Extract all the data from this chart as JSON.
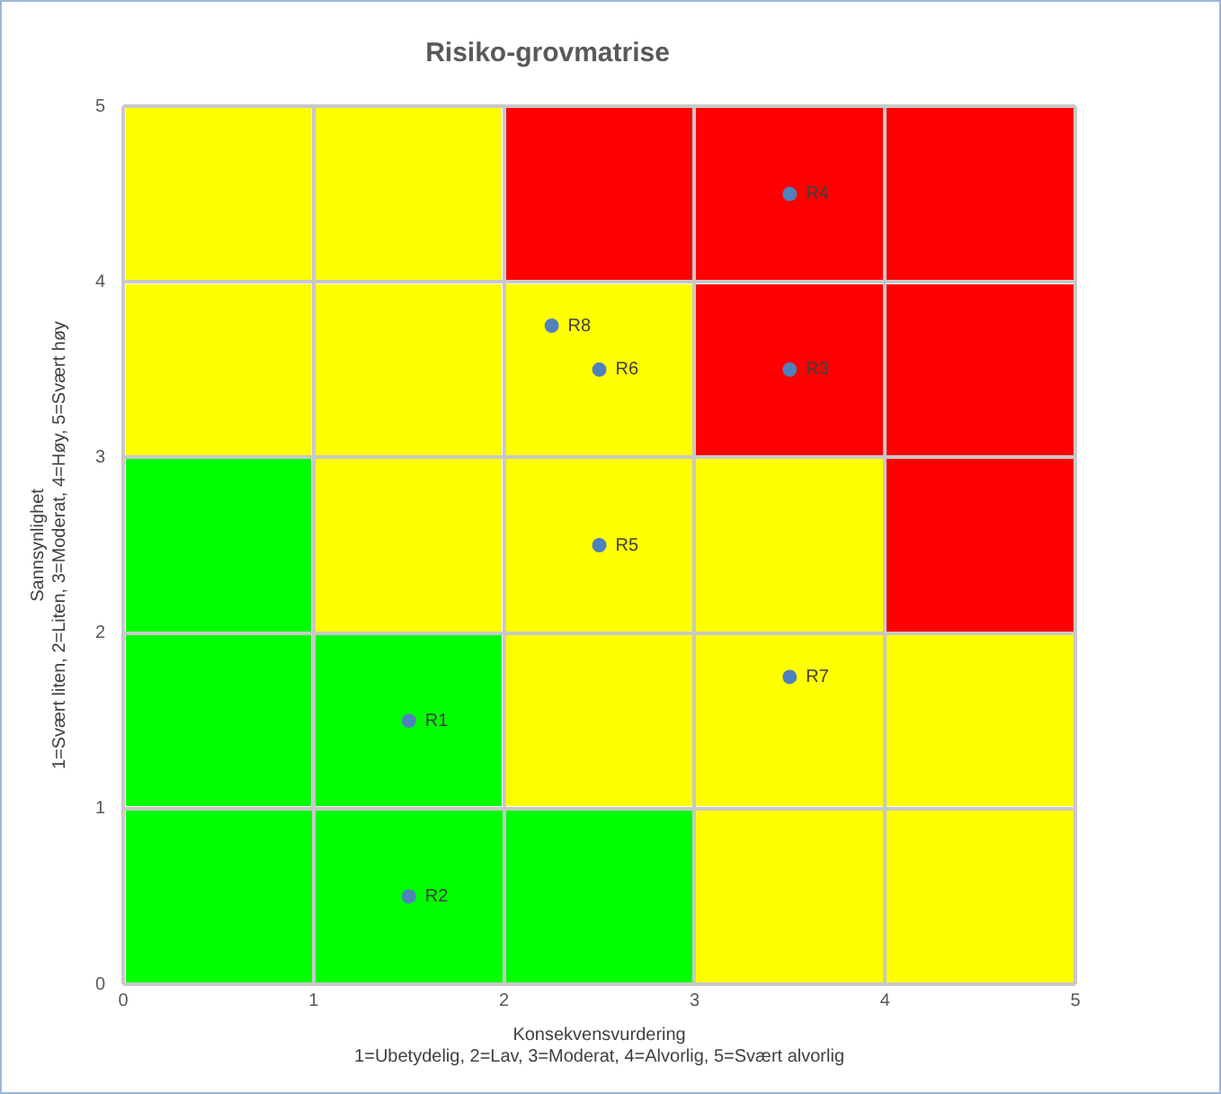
{
  "chart_data": {
    "type": "scatter",
    "title": "Risiko-grovmatrise",
    "xlabel": "Konsekvensvurdering\n1=Ubetydelig, 2=Lav, 3=Moderat, 4=Alvorlig, 5=Svært alvorlig",
    "ylabel": "Sannsynlighet\n1=Svært liten, 2=Liten, 3=Moderat, 4=Høy, 5=Svært høy",
    "series": [
      {
        "color": "#4f81bd",
        "x": [
          1.5,
          1.5,
          3.5,
          3.5,
          2.5,
          2.5,
          3.5,
          2.25
        ],
        "values": [
          1.5,
          0.5,
          3.5,
          4.5,
          2.5,
          3.5,
          1.75,
          3.75
        ]
      }
    ],
    "annotations": [
      {
        "text": "R1",
        "x": 1.5,
        "y": 1.5
      },
      {
        "text": "R2",
        "x": 1.5,
        "y": 0.5
      },
      {
        "text": "R3",
        "x": 3.5,
        "y": 3.5
      },
      {
        "text": "R4",
        "x": 3.5,
        "y": 4.5
      },
      {
        "text": "R5",
        "x": 2.5,
        "y": 2.5
      },
      {
        "text": "R6",
        "x": 2.5,
        "y": 3.5
      },
      {
        "text": "R7",
        "x": 3.5,
        "y": 1.75
      },
      {
        "text": "R8",
        "x": 2.25,
        "y": 3.75
      }
    ],
    "xlim": [
      0,
      5
    ],
    "ylim": [
      0,
      5
    ],
    "xticks": [
      0,
      1,
      2,
      3,
      4,
      5
    ],
    "yticks": [
      0,
      1,
      2,
      3,
      4,
      5
    ],
    "grid": true,
    "legend": false,
    "marker": "circle"
  }
}
